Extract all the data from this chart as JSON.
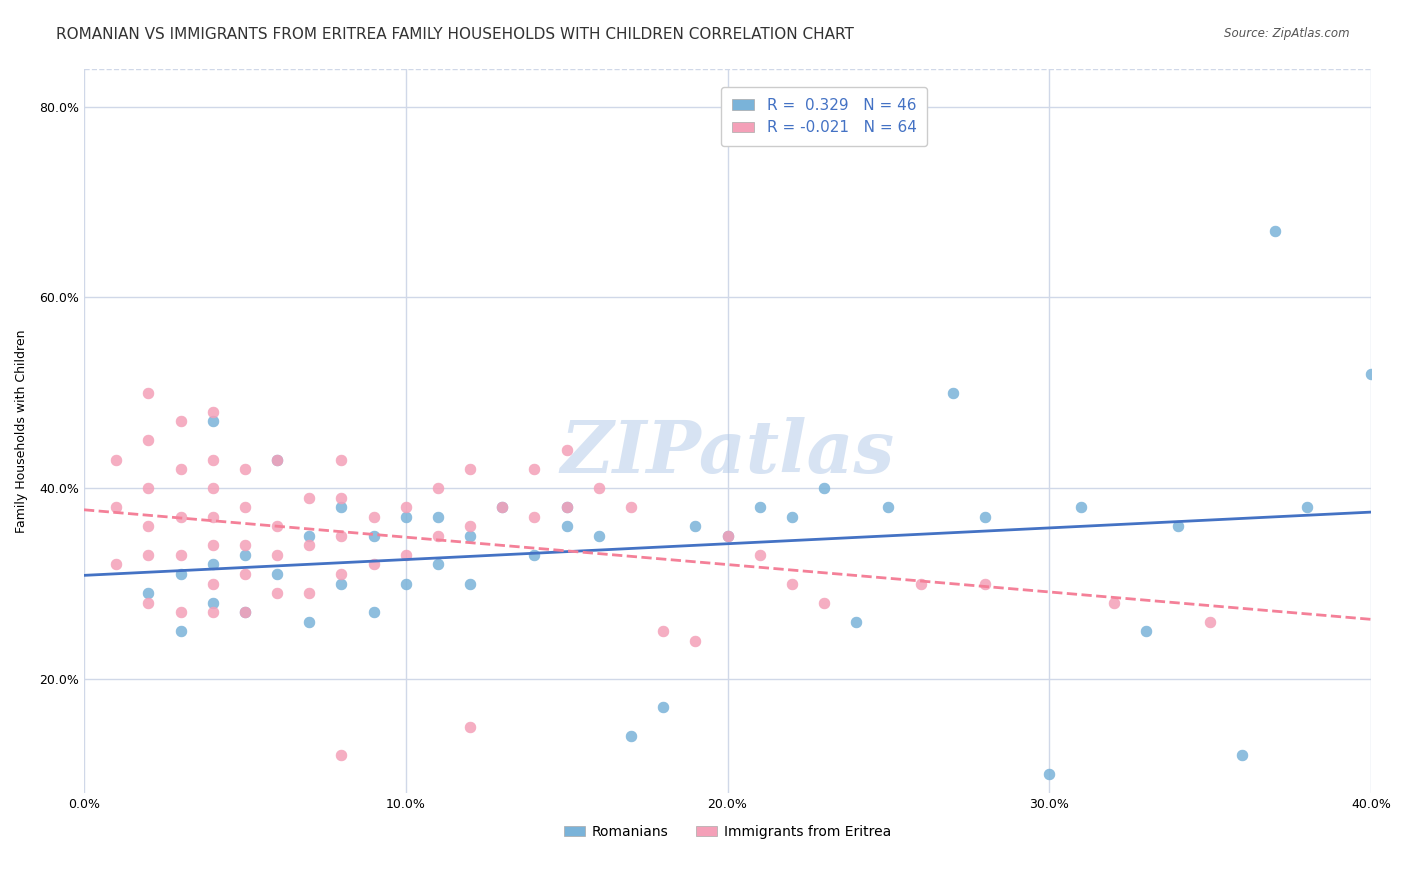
{
  "title": "ROMANIAN VS IMMIGRANTS FROM ERITREA FAMILY HOUSEHOLDS WITH CHILDREN CORRELATION CHART",
  "source": "Source: ZipAtlas.com",
  "xlabel": "",
  "ylabel": "Family Households with Children",
  "xlim": [
    0.0,
    0.4
  ],
  "ylim": [
    0.08,
    0.84
  ],
  "xticks": [
    0.0,
    0.1,
    0.2,
    0.3,
    0.4
  ],
  "xticklabels": [
    "0.0%",
    "10.0%",
    "20.0%",
    "30.0%",
    "40.0%"
  ],
  "yticks": [
    0.2,
    0.4,
    0.6,
    0.8
  ],
  "yticklabels": [
    "20.0%",
    "40.0%",
    "60.0%",
    "80.0%"
  ],
  "legend_labels": [
    "Romanians",
    "Immigrants from Eritrea"
  ],
  "blue_color": "#7ab3d9",
  "pink_color": "#f4a0b8",
  "blue_line_color": "#4472c4",
  "pink_line_color": "#f48098",
  "watermark": "ZIPatlas",
  "watermark_color": "#b0c8e8",
  "R_blue": 0.329,
  "N_blue": 46,
  "R_pink": -0.021,
  "N_pink": 64,
  "blue_scatter_x": [
    0.02,
    0.03,
    0.03,
    0.04,
    0.04,
    0.04,
    0.05,
    0.05,
    0.06,
    0.06,
    0.07,
    0.07,
    0.08,
    0.08,
    0.09,
    0.09,
    0.1,
    0.1,
    0.11,
    0.11,
    0.12,
    0.12,
    0.13,
    0.14,
    0.15,
    0.15,
    0.16,
    0.17,
    0.18,
    0.19,
    0.2,
    0.21,
    0.22,
    0.23,
    0.24,
    0.25,
    0.27,
    0.28,
    0.3,
    0.31,
    0.33,
    0.34,
    0.36,
    0.37,
    0.38,
    0.4
  ],
  "blue_scatter_y": [
    0.29,
    0.25,
    0.31,
    0.28,
    0.32,
    0.47,
    0.27,
    0.33,
    0.31,
    0.43,
    0.26,
    0.35,
    0.3,
    0.38,
    0.27,
    0.35,
    0.37,
    0.3,
    0.32,
    0.37,
    0.35,
    0.3,
    0.38,
    0.33,
    0.36,
    0.38,
    0.35,
    0.14,
    0.17,
    0.36,
    0.35,
    0.38,
    0.37,
    0.4,
    0.26,
    0.38,
    0.5,
    0.37,
    0.1,
    0.38,
    0.25,
    0.36,
    0.12,
    0.67,
    0.38,
    0.52
  ],
  "pink_scatter_x": [
    0.01,
    0.01,
    0.01,
    0.02,
    0.02,
    0.02,
    0.02,
    0.02,
    0.02,
    0.03,
    0.03,
    0.03,
    0.03,
    0.03,
    0.04,
    0.04,
    0.04,
    0.04,
    0.04,
    0.04,
    0.04,
    0.05,
    0.05,
    0.05,
    0.05,
    0.05,
    0.06,
    0.06,
    0.06,
    0.06,
    0.07,
    0.07,
    0.07,
    0.08,
    0.08,
    0.08,
    0.08,
    0.09,
    0.09,
    0.1,
    0.1,
    0.11,
    0.11,
    0.12,
    0.12,
    0.13,
    0.14,
    0.14,
    0.15,
    0.15,
    0.16,
    0.17,
    0.18,
    0.19,
    0.2,
    0.21,
    0.22,
    0.23,
    0.26,
    0.28,
    0.32,
    0.35,
    0.12,
    0.08
  ],
  "pink_scatter_y": [
    0.32,
    0.38,
    0.43,
    0.28,
    0.33,
    0.36,
    0.4,
    0.45,
    0.5,
    0.27,
    0.33,
    0.37,
    0.42,
    0.47,
    0.27,
    0.3,
    0.34,
    0.37,
    0.4,
    0.43,
    0.48,
    0.27,
    0.31,
    0.34,
    0.38,
    0.42,
    0.29,
    0.33,
    0.36,
    0.43,
    0.29,
    0.34,
    0.39,
    0.31,
    0.35,
    0.39,
    0.43,
    0.32,
    0.37,
    0.33,
    0.38,
    0.35,
    0.4,
    0.36,
    0.42,
    0.38,
    0.37,
    0.42,
    0.38,
    0.44,
    0.4,
    0.38,
    0.25,
    0.24,
    0.35,
    0.33,
    0.3,
    0.28,
    0.3,
    0.3,
    0.28,
    0.26,
    0.15,
    0.12
  ],
  "grid_color": "#d0d8e8",
  "background_color": "#ffffff",
  "title_fontsize": 11,
  "axis_fontsize": 9,
  "tick_fontsize": 9
}
